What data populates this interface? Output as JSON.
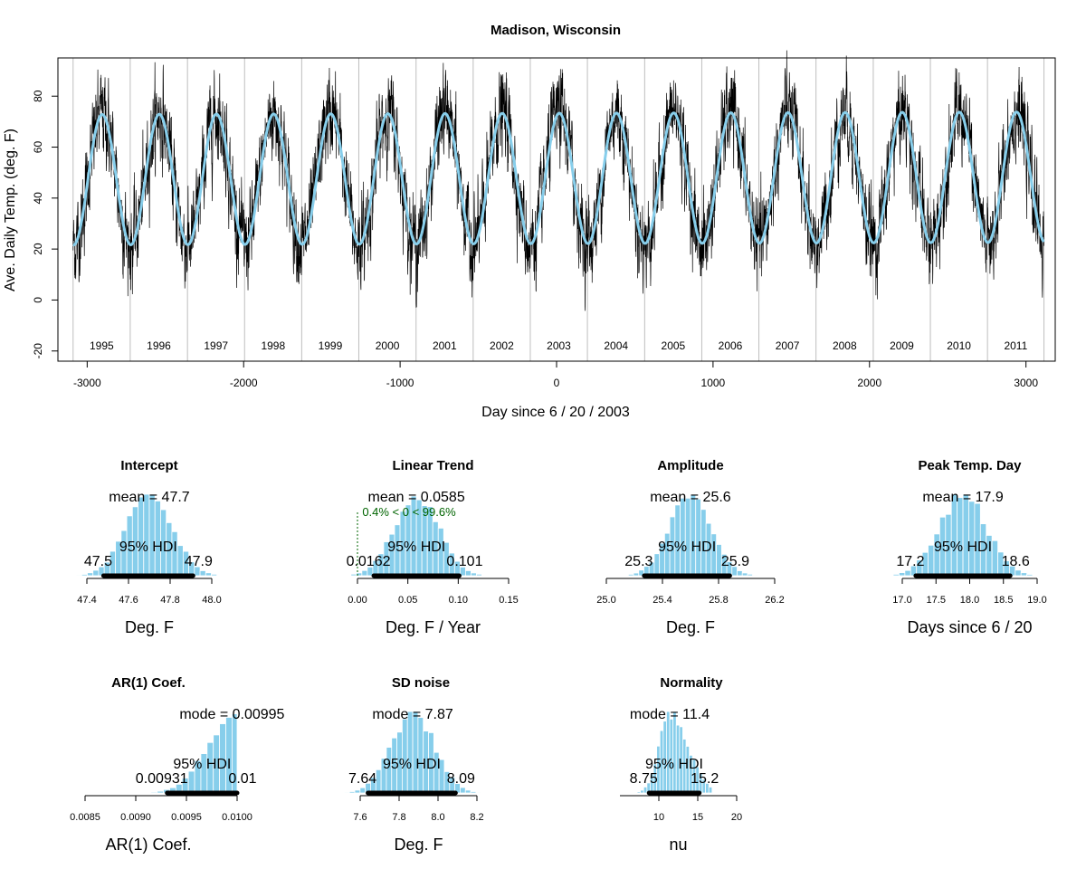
{
  "colors": {
    "histogram_fill": "#87CEEB",
    "histogram_stroke": "#ffffff",
    "trend_line": "#87CEEB",
    "data_line": "#000000",
    "year_separator": "#bebebe",
    "hdi_bar": "#000000",
    "comp_text": "#006400"
  },
  "chart_data": [
    {
      "type": "line",
      "title": "Madison, Wisconsin",
      "xlabel": "Day since 6 / 20 / 2003",
      "ylabel": "Ave. Daily Temp. (deg. F)",
      "xlim": [
        -3187,
        3187
      ],
      "ylim": [
        -24,
        95
      ],
      "xticks": [
        -3000,
        -2000,
        -1000,
        0,
        1000,
        2000,
        3000
      ],
      "yticks": [
        -20,
        0,
        20,
        40,
        60,
        80
      ],
      "year_labels": [
        "1995",
        "1996",
        "1997",
        "1998",
        "1999",
        "2000",
        "2001",
        "2002",
        "2003",
        "2004",
        "2005",
        "2006",
        "2007",
        "2008",
        "2009",
        "2010",
        "2011"
      ],
      "year_boundaries": [
        -3090,
        -2725,
        -2359,
        -1994,
        -1629,
        -1264,
        -898,
        -533,
        -168,
        197,
        563,
        928,
        1293,
        1658,
        2024,
        2389,
        2754,
        3115
      ],
      "fit_curve": {
        "intercept": 47.7,
        "linear_trend": 0.0585,
        "amplitude": 25.6,
        "peak_day": 17.9,
        "sd_noise": 7.87
      },
      "series": [
        {
          "values_note_free": true,
          "x_range": [
            -3090,
            3115
          ]
        }
      ]
    },
    {
      "type": "histogram",
      "title": "Intercept",
      "xlabel": "Deg. F",
      "xlim": [
        47.4,
        48.0
      ],
      "xticks": [
        "47.4",
        "47.6",
        "47.8",
        "48.0"
      ],
      "mean_label": "mean = 47.7",
      "center": 47.7,
      "sd": 0.11,
      "hdi_label": "95% HDI",
      "hdi_low": "47.5",
      "hdi_high": "47.9",
      "hdi": [
        47.48,
        47.91
      ]
    },
    {
      "type": "histogram",
      "title": "Linear Trend",
      "xlabel": "Deg. F / Year",
      "xlim": [
        0.0,
        0.15
      ],
      "xticks": [
        "0.00",
        "0.05",
        "0.10",
        "0.15"
      ],
      "mean_label": "mean = 0.0585",
      "center": 0.0585,
      "sd": 0.022,
      "hdi_label": "95% HDI",
      "hdi_low": "0.0162",
      "hdi_high": "0.101",
      "hdi": [
        0.0162,
        0.101
      ],
      "comp_value": 0,
      "comp_label": "0.4% < 0 < 99.6%"
    },
    {
      "type": "histogram",
      "title": "Amplitude",
      "xlabel": "Deg. F",
      "xlim": [
        25.0,
        26.2
      ],
      "xticks": [
        "25.0",
        "25.4",
        "25.8",
        "26.2"
      ],
      "mean_label": "mean = 25.6",
      "center": 25.6,
      "sd": 0.15,
      "hdi_label": "95% HDI",
      "hdi_low": "25.3",
      "hdi_high": "25.9",
      "hdi": [
        25.27,
        25.88
      ]
    },
    {
      "type": "histogram",
      "title": "Peak Temp. Day",
      "xlabel": "Days since 6 / 20",
      "xlim": [
        17.0,
        19.0
      ],
      "xticks": [
        "17.0",
        "17.5",
        "18.0",
        "18.5",
        "19.0"
      ],
      "mean_label": "mean = 17.9",
      "center": 17.9,
      "sd": 0.35,
      "hdi_label": "95% HDI",
      "hdi_low": "17.2",
      "hdi_high": "18.6",
      "hdi": [
        17.2,
        18.6
      ]
    },
    {
      "type": "histogram",
      "title": "AR(1) Coef.",
      "xlabel": "AR(1) Coef.",
      "xlim": [
        0.0085,
        0.01
      ],
      "xticks": [
        "0.0085",
        "0.0090",
        "0.0095",
        "0.0100"
      ],
      "mean_label": "mode = 0.00995",
      "center": 0.00995,
      "sd": 0.00025,
      "skew_left": true,
      "hdi_label": "95% HDI",
      "hdi_low": "0.00931",
      "hdi_high": "0.01",
      "hdi": [
        0.00931,
        0.01
      ]
    },
    {
      "type": "histogram",
      "title": "SD noise",
      "xlabel": "Deg. F",
      "xlim": [
        7.6,
        8.2
      ],
      "xticks": [
        "7.6",
        "7.8",
        "8.0",
        "8.2"
      ],
      "mean_label": "mode = 7.87",
      "center": 7.87,
      "sd": 0.11,
      "hdi_label": "95% HDI",
      "hdi_low": "7.64",
      "hdi_high": "8.09",
      "hdi": [
        7.64,
        8.09
      ]
    },
    {
      "type": "histogram",
      "title": "Normality",
      "xlabel": "nu",
      "xlim": [
        5,
        20
      ],
      "xticks": [
        "10",
        "15",
        "20"
      ],
      "xtick_values": [
        10,
        15,
        20
      ],
      "mean_label": "mode = 11.4",
      "center": 11.4,
      "sd": 1.7,
      "skew_right": true,
      "hdi_label": "95% HDI",
      "hdi_low": "8.75",
      "hdi_high": "15.2",
      "hdi": [
        8.75,
        15.2
      ]
    }
  ]
}
